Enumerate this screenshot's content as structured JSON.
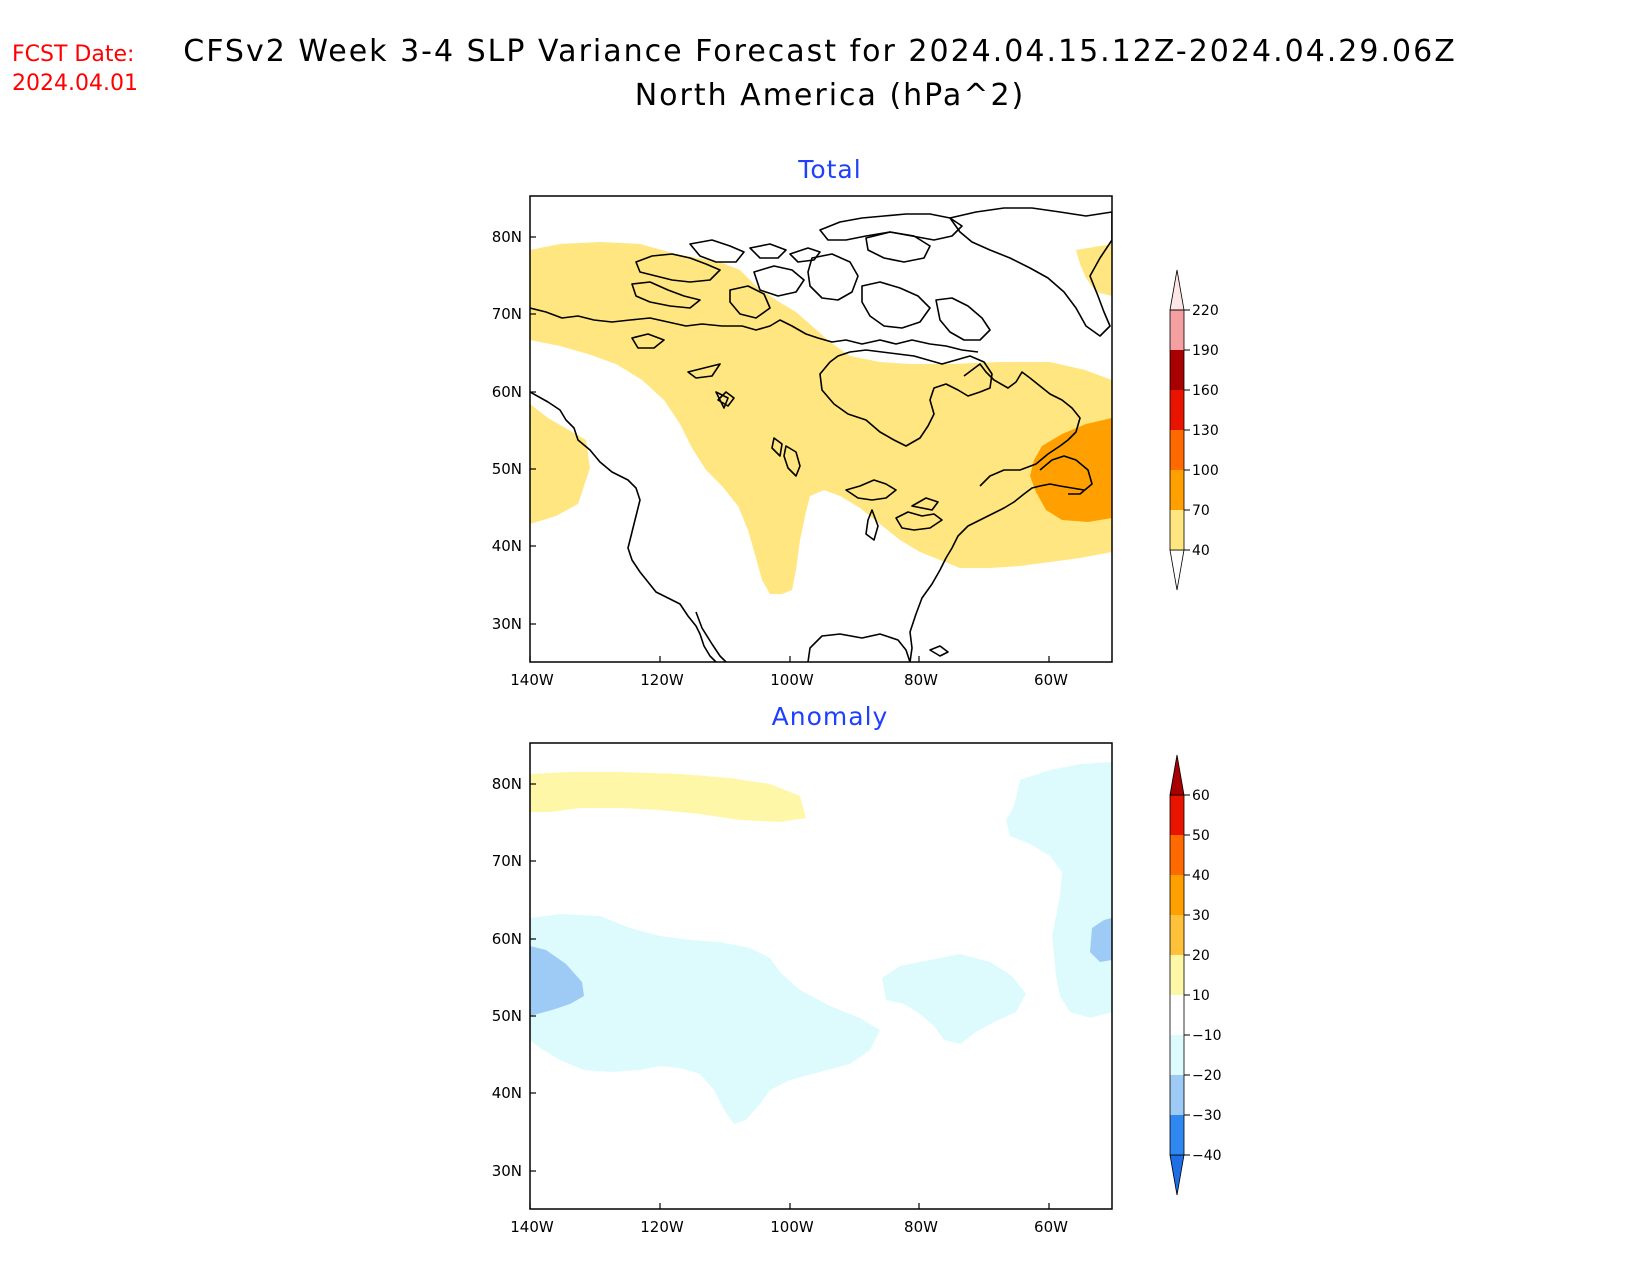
{
  "header": {
    "fcst_label": "FCST Date:",
    "fcst_date": "2024.04.01",
    "title_line1": "CFSv2 Week 3-4 SLP Variance Forecast for 2024.04.15.12Z-2024.04.29.06Z",
    "title_line2": "North America (hPa^2)"
  },
  "axes": {
    "lon_ticks": [
      "140W",
      "120W",
      "100W",
      "80W",
      "60W"
    ],
    "lat_ticks": [
      "80N",
      "70N",
      "60N",
      "50N",
      "40N",
      "30N"
    ]
  },
  "panels": [
    {
      "title": "Total",
      "colorbar": {
        "levels": [
          40,
          70,
          100,
          130,
          160,
          190,
          220
        ],
        "labels": [
          "40",
          "70",
          "100",
          "130",
          "160",
          "190",
          "220"
        ],
        "colors": [
          "#ffe680",
          "#ffa000",
          "#ff6a00",
          "#e81400",
          "#a80000",
          "#f4a0a0",
          "#ffe6e6"
        ]
      }
    },
    {
      "title": "Anomaly",
      "colorbar": {
        "levels": [
          -40,
          -30,
          -20,
          -10,
          10,
          20,
          30,
          40,
          50,
          60
        ],
        "labels": [
          "-40",
          "-30",
          "-20",
          "-10",
          "10",
          "20",
          "30",
          "40",
          "50",
          "60"
        ],
        "colors": [
          "#1e6ee6",
          "#2e88f0",
          "#9dcbf5",
          "#ddfbfd",
          "#ffffff",
          "#fff7a8",
          "#ffc03a",
          "#ffa000",
          "#ff6a00",
          "#e81400",
          "#a80000"
        ]
      }
    }
  ],
  "chart_data": {
    "type": "heatmap",
    "region": "North America",
    "units": "hPa^2",
    "lon_range": [
      -140,
      -50
    ],
    "lat_range": [
      25,
      85
    ]
  }
}
